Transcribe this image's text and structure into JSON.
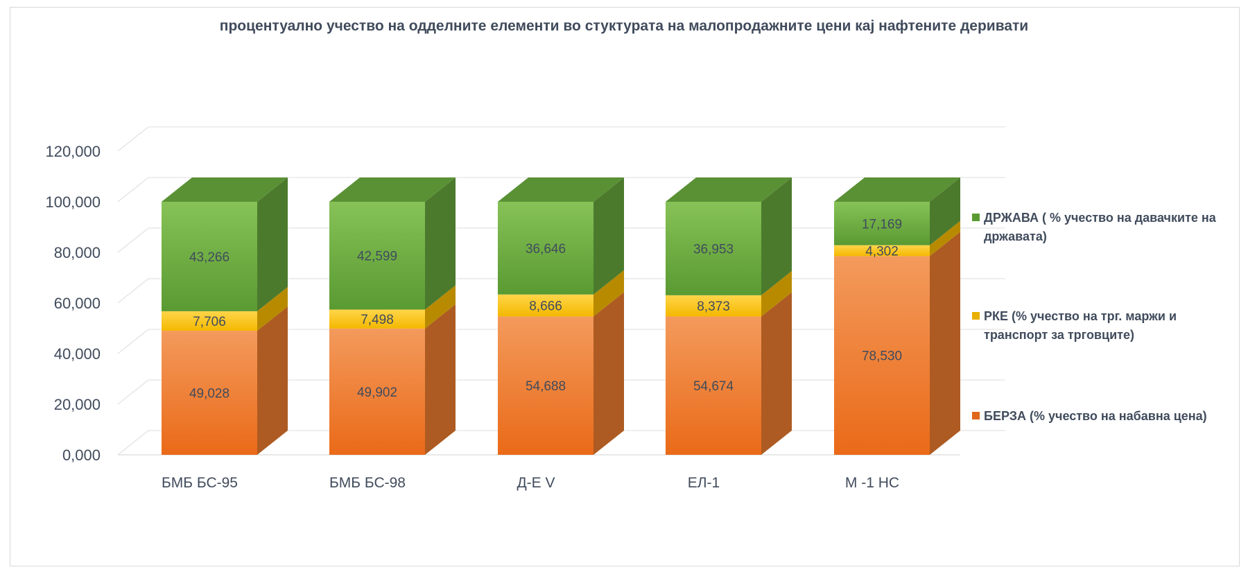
{
  "chart_data": {
    "type": "bar",
    "stacked": true,
    "three_d": true,
    "title": "процентуално учество на одделните елементи во стуктурата на малопродажните цени кај нафтените деривати",
    "categories": [
      "БМБ БС-95",
      "БМБ БС-98",
      "Д-Е V",
      "ЕЛ-1",
      "М -1 НС"
    ],
    "series": [
      {
        "name": "БЕРЗА (% учество на набавна цена)",
        "color": "#f07f2f",
        "values": [
          49.028,
          49.902,
          54.688,
          54.674,
          78.53
        ],
        "labels": [
          "49,028",
          "49,902",
          "54,688",
          "54,674",
          "78,530"
        ]
      },
      {
        "name": "РКЕ (% учество на трг. маржи и транспорт за трговците)",
        "color": "#ffc000",
        "values": [
          7.706,
          7.498,
          8.666,
          8.373,
          4.302
        ],
        "labels": [
          "7,706",
          "7,498",
          "8,666",
          "8,373",
          "4,302"
        ]
      },
      {
        "name": "ДРЖАВА ( % учество на давачките на државата)",
        "color": "#6aaa3e",
        "values": [
          43.266,
          42.599,
          36.646,
          36.953,
          17.169
        ],
        "labels": [
          "43,266",
          "42,599",
          "36,646",
          "36,953",
          "17,169"
        ]
      }
    ],
    "ylim": [
      0,
      120
    ],
    "yticks": [
      0,
      20,
      40,
      60,
      80,
      100,
      120
    ],
    "ytick_labels": [
      "0,000",
      "20,000",
      "40,000",
      "60,000",
      "80,000",
      "100,000",
      "120,000"
    ],
    "grid": true,
    "legend_position": "right"
  }
}
